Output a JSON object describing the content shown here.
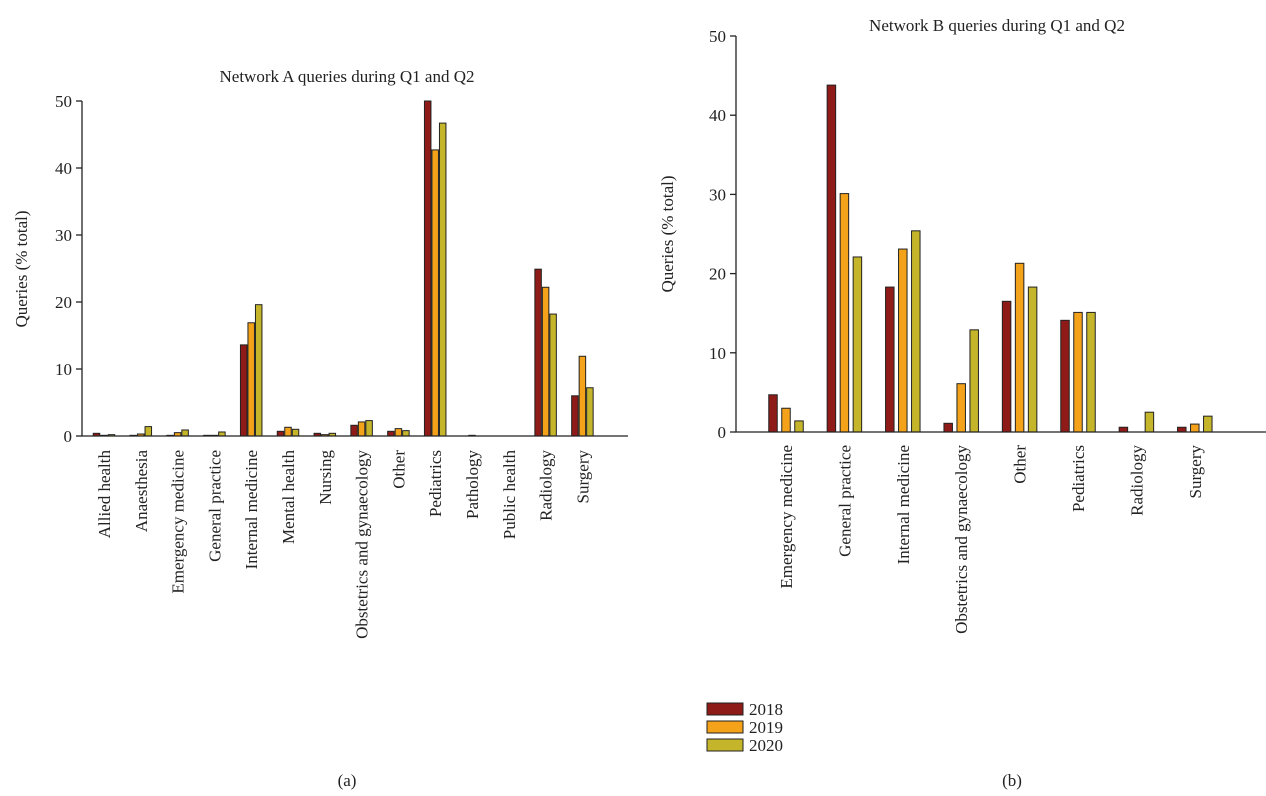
{
  "colors": {
    "2018": "#8E1B17",
    "2019": "#F3A21A",
    "2020": "#C5B52A"
  },
  "legend": [
    "2018",
    "2019",
    "2020"
  ],
  "chart_data": [
    {
      "type": "bar",
      "panel_label": "(a)",
      "title": "Network A queries during Q1 and Q2",
      "xlabel": "",
      "ylabel": "Queries (% total)",
      "ylim": [
        0,
        50
      ],
      "yticks": [
        0,
        10,
        20,
        30,
        40,
        50
      ],
      "categories": [
        "Allied health",
        "Anaesthesia",
        "Emergency medicine",
        "General practice",
        "Internal medicine",
        "Mental health",
        "Nursing",
        "Obstetrics and gynaecology",
        "Other",
        "Pediatrics",
        "Pathology",
        "Public health",
        "Radiology",
        "Surgery"
      ],
      "series": [
        {
          "name": "2018",
          "values": [
            0.4,
            0.1,
            0.1,
            0.1,
            13.6,
            0.7,
            0.4,
            1.6,
            0.7,
            50.0,
            0.0,
            0.0,
            24.9,
            6.0
          ]
        },
        {
          "name": "2019",
          "values": [
            0.1,
            0.3,
            0.5,
            0.1,
            16.9,
            1.3,
            0.2,
            2.1,
            1.1,
            42.7,
            0.1,
            0.0,
            22.2,
            11.9
          ]
        },
        {
          "name": "2020",
          "values": [
            0.2,
            1.4,
            0.9,
            0.6,
            19.6,
            1.0,
            0.4,
            2.3,
            0.8,
            46.7,
            0.0,
            0.0,
            18.2,
            7.2
          ]
        }
      ]
    },
    {
      "type": "bar",
      "panel_label": "(b)",
      "title": "Network B queries during Q1 and Q2",
      "xlabel": "",
      "ylabel": "Queries (% total)",
      "ylim": [
        0,
        50
      ],
      "yticks": [
        0,
        10,
        20,
        30,
        40,
        50
      ],
      "categories": [
        "Emergency medicine",
        "General practice",
        "Internal medicine",
        "Obstetrics and gynaecology",
        "Other",
        "Pediatrics",
        "Radiology",
        "Surgery"
      ],
      "series": [
        {
          "name": "2018",
          "values": [
            4.7,
            43.8,
            18.3,
            1.1,
            16.5,
            14.1,
            0.6,
            0.6
          ]
        },
        {
          "name": "2019",
          "values": [
            3.0,
            30.1,
            23.1,
            6.1,
            21.3,
            15.1,
            0.0,
            1.0
          ]
        },
        {
          "name": "2020",
          "values": [
            1.4,
            22.1,
            25.4,
            12.9,
            18.3,
            15.1,
            2.5,
            2.0
          ]
        }
      ]
    }
  ]
}
